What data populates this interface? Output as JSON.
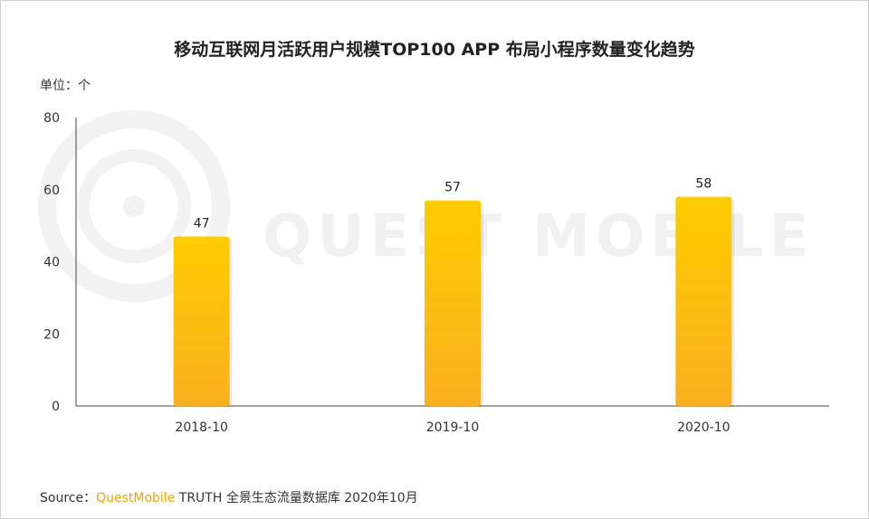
{
  "chart_data": {
    "type": "bar",
    "title": "移动互联网月活跃用户规模TOP100 APP 布局小程序数量变化趋势",
    "unit_label": "单位：个",
    "categories": [
      "2018-10",
      "2019-10",
      "2020-10"
    ],
    "values": [
      47,
      57,
      58
    ],
    "ylim": [
      0,
      80
    ],
    "yticks": [
      0,
      20,
      40,
      60,
      80
    ],
    "ytick_labels": [
      "0",
      "20",
      "40",
      "60",
      "80"
    ],
    "xlabel": "",
    "ylabel": "",
    "grid": false,
    "bar_colors": {
      "top": "#ffcc00",
      "bottom": "#f9b01e"
    }
  },
  "source": {
    "prefix": "Source：",
    "brand": "QuestMobile",
    "suffix": "TRUTH 全景生态流量数据库 2020年10月"
  },
  "watermark": {
    "text": "QUEST MOBILE"
  }
}
